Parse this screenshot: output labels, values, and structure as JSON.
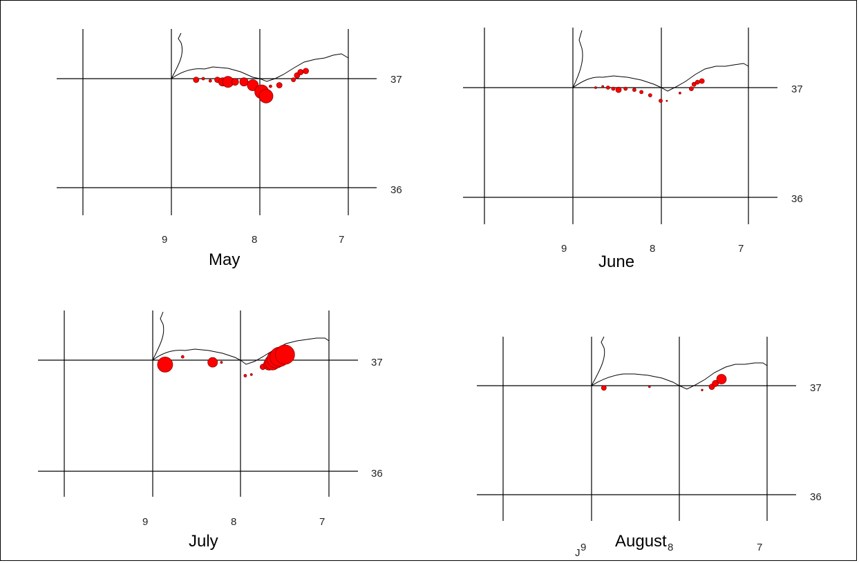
{
  "panels": [
    {
      "month": "May",
      "lon_labels": [
        "9",
        "8",
        "7"
      ],
      "lat_labels": [
        "37",
        "36"
      ],
      "points": [
        {
          "lon": 8.72,
          "lat": 36.99,
          "size": 4
        },
        {
          "lon": 8.64,
          "lat": 37.0,
          "size": 2
        },
        {
          "lon": 8.56,
          "lat": 36.98,
          "size": 2
        },
        {
          "lon": 8.48,
          "lat": 36.99,
          "size": 4
        },
        {
          "lon": 8.42,
          "lat": 36.97,
          "size": 6
        },
        {
          "lon": 8.36,
          "lat": 36.97,
          "size": 8
        },
        {
          "lon": 8.28,
          "lat": 36.97,
          "size": 5
        },
        {
          "lon": 8.18,
          "lat": 36.97,
          "size": 6
        },
        {
          "lon": 8.08,
          "lat": 36.94,
          "size": 8
        },
        {
          "lon": 7.98,
          "lat": 36.88,
          "size": 10
        },
        {
          "lon": 7.93,
          "lat": 36.84,
          "size": 10
        },
        {
          "lon": 7.88,
          "lat": 36.93,
          "size": 2
        },
        {
          "lon": 7.78,
          "lat": 36.94,
          "size": 4
        },
        {
          "lon": 7.62,
          "lat": 36.99,
          "size": 3
        },
        {
          "lon": 7.58,
          "lat": 37.03,
          "size": 4
        },
        {
          "lon": 7.54,
          "lat": 37.06,
          "size": 4
        },
        {
          "lon": 7.48,
          "lat": 37.07,
          "size": 4
        }
      ]
    },
    {
      "month": "June",
      "lon_labels": [
        "9",
        "8",
        "7"
      ],
      "lat_labels": [
        "37",
        "36"
      ],
      "points": [
        {
          "lon": 8.74,
          "lat": 37.0,
          "size": 1.5
        },
        {
          "lon": 8.66,
          "lat": 37.01,
          "size": 1.5
        },
        {
          "lon": 8.6,
          "lat": 37.0,
          "size": 2.5
        },
        {
          "lon": 8.54,
          "lat": 36.99,
          "size": 2.5
        },
        {
          "lon": 8.48,
          "lat": 36.98,
          "size": 4
        },
        {
          "lon": 8.4,
          "lat": 36.99,
          "size": 2.5
        },
        {
          "lon": 8.3,
          "lat": 36.98,
          "size": 2.5
        },
        {
          "lon": 8.22,
          "lat": 36.96,
          "size": 2.5
        },
        {
          "lon": 8.12,
          "lat": 36.93,
          "size": 2.5
        },
        {
          "lon": 8.0,
          "lat": 36.88,
          "size": 2.5
        },
        {
          "lon": 7.93,
          "lat": 36.88,
          "size": 1
        },
        {
          "lon": 7.78,
          "lat": 36.95,
          "size": 1.5
        },
        {
          "lon": 7.65,
          "lat": 36.99,
          "size": 3
        },
        {
          "lon": 7.62,
          "lat": 37.03,
          "size": 3
        },
        {
          "lon": 7.58,
          "lat": 37.05,
          "size": 3
        },
        {
          "lon": 7.53,
          "lat": 37.06,
          "size": 3.5
        }
      ]
    },
    {
      "month": "July",
      "lon_labels": [
        "9",
        "8",
        "7"
      ],
      "lat_labels": [
        "37",
        "36"
      ],
      "points": [
        {
          "lon": 8.86,
          "lat": 36.96,
          "size": 11
        },
        {
          "lon": 8.66,
          "lat": 37.03,
          "size": 2
        },
        {
          "lon": 8.32,
          "lat": 36.98,
          "size": 7
        },
        {
          "lon": 8.22,
          "lat": 36.98,
          "size": 1.5
        },
        {
          "lon": 7.95,
          "lat": 36.86,
          "size": 2
        },
        {
          "lon": 7.88,
          "lat": 36.87,
          "size": 1.5
        },
        {
          "lon": 7.75,
          "lat": 36.94,
          "size": 4
        },
        {
          "lon": 7.68,
          "lat": 36.96,
          "size": 8
        },
        {
          "lon": 7.64,
          "lat": 36.98,
          "size": 11
        },
        {
          "lon": 7.6,
          "lat": 37.01,
          "size": 13
        },
        {
          "lon": 7.56,
          "lat": 37.03,
          "size": 14
        },
        {
          "lon": 7.5,
          "lat": 37.05,
          "size": 14
        }
      ]
    },
    {
      "month": "August",
      "lon_labels": [
        "9",
        "8",
        "7"
      ],
      "lat_labels": [
        "37",
        "36"
      ],
      "extra_label": "J",
      "points": [
        {
          "lon": 8.86,
          "lat": 36.98,
          "size": 3.5
        },
        {
          "lon": 8.34,
          "lat": 36.99,
          "size": 1.3
        },
        {
          "lon": 7.74,
          "lat": 36.96,
          "size": 1.3
        },
        {
          "lon": 7.63,
          "lat": 36.99,
          "size": 4
        },
        {
          "lon": 7.59,
          "lat": 37.02,
          "size": 4.5
        },
        {
          "lon": 7.52,
          "lat": 37.06,
          "size": 7
        }
      ]
    }
  ]
}
